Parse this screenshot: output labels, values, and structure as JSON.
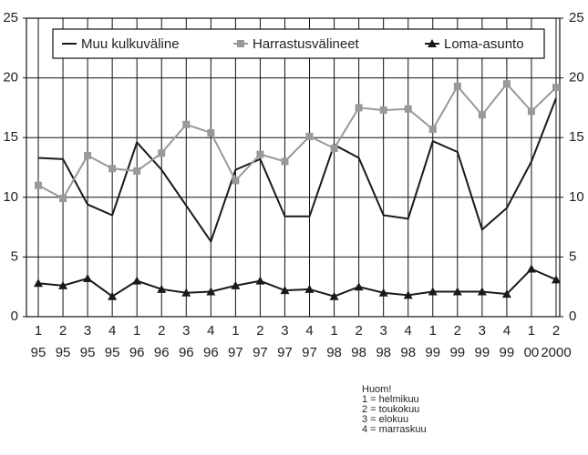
{
  "chart_data": {
    "type": "line",
    "categories": [
      "1",
      "2",
      "3",
      "4",
      "1",
      "2",
      "3",
      "4",
      "1",
      "2",
      "3",
      "4",
      "1",
      "2",
      "3",
      "4",
      "1",
      "2",
      "3",
      "4",
      "1",
      "2"
    ],
    "category_years": [
      "95",
      "95",
      "95",
      "95",
      "96",
      "96",
      "96",
      "96",
      "97",
      "97",
      "97",
      "97",
      "98",
      "98",
      "98",
      "98",
      "99",
      "99",
      "99",
      "99",
      "00",
      "2000"
    ],
    "series": [
      {
        "name": "Muu kulkuväline",
        "color": "#1a1a1a",
        "marker": "none",
        "values": [
          13.3,
          13.2,
          9.4,
          8.5,
          14.6,
          12.3,
          9.3,
          6.3,
          12.3,
          13.2,
          8.4,
          8.4,
          14.4,
          13.3,
          8.5,
          8.2,
          14.7,
          13.8,
          7.3,
          9.1,
          13.0,
          18.3
        ]
      },
      {
        "name": "Harrastusvälineet",
        "color": "#999999",
        "marker": "square",
        "values": [
          11.0,
          9.9,
          13.5,
          12.4,
          12.2,
          13.7,
          16.1,
          15.4,
          11.4,
          13.6,
          13.0,
          15.1,
          14.1,
          17.5,
          17.3,
          17.4,
          15.7,
          19.3,
          16.9,
          19.5,
          17.2,
          19.2
        ]
      },
      {
        "name": "Loma-asunto",
        "color": "#1a1a1a",
        "marker": "triangle",
        "values": [
          2.8,
          2.6,
          3.2,
          1.7,
          3.0,
          2.3,
          2.0,
          2.1,
          2.6,
          3.0,
          2.2,
          2.3,
          1.7,
          2.5,
          2.0,
          1.8,
          2.1,
          2.1,
          2.1,
          1.9,
          4.0,
          3.1
        ]
      }
    ],
    "ylim": [
      0,
      25
    ],
    "yticks": [
      0,
      5,
      10,
      15,
      20,
      25
    ],
    "y2lim": [
      0,
      25
    ],
    "y2ticks": [
      0,
      5,
      10,
      15,
      20,
      25
    ],
    "grid": true,
    "legend": "top",
    "note": [
      "Huom!",
      "1 = helmikuu",
      "2 = toukokuu",
      "3 = elokuu",
      "4 = marraskuu"
    ]
  }
}
